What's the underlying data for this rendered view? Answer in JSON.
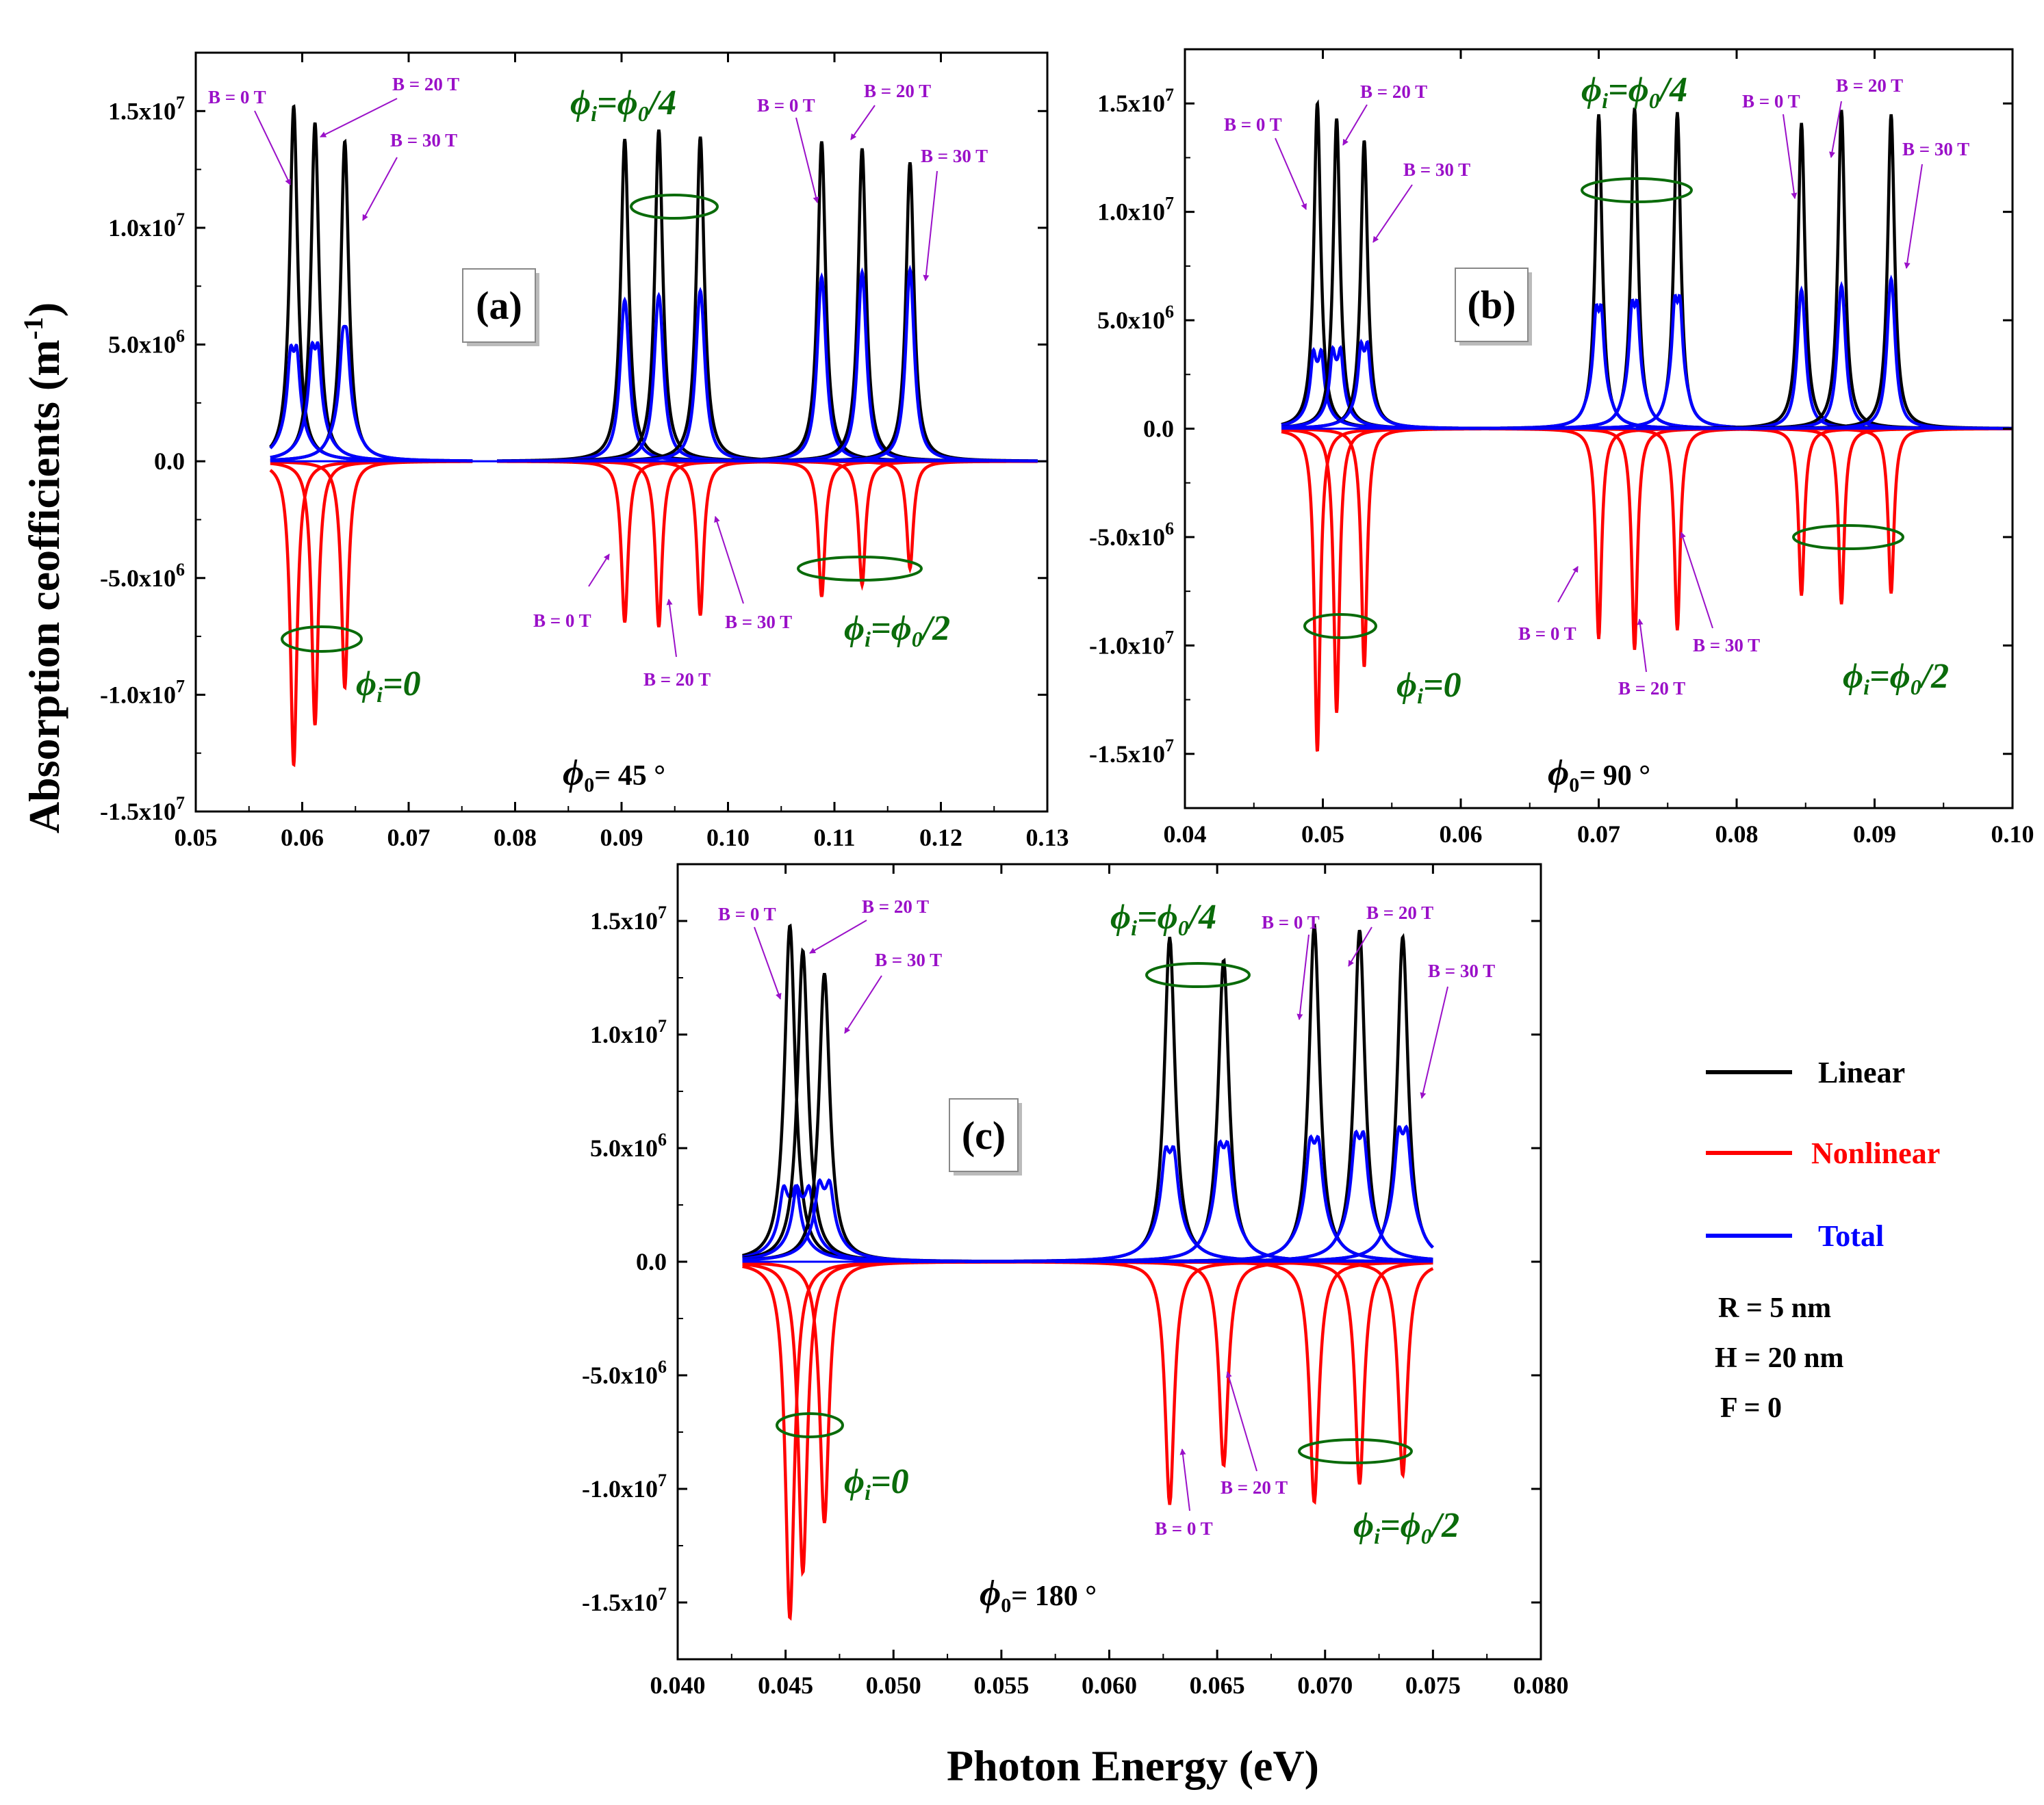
{
  "chart_data": [
    {
      "type": "line",
      "panel_label": "(a)",
      "phi0_label": "45 °",
      "xlim": [
        0.05,
        0.13
      ],
      "ylim": [
        -15000000,
        17500000
      ],
      "xticks": [
        "0.05",
        "0.06",
        "0.07",
        "0.08",
        "0.09",
        "0.10",
        "0.11",
        "0.12",
        "0.13"
      ],
      "ytick_values": [
        -15000000,
        -10000000,
        -5000000,
        0,
        5000000,
        10000000,
        15000000
      ],
      "ytick_labels": [
        {
          "mant": "-1.5x10",
          "exp": "7"
        },
        {
          "mant": "-1.0x10",
          "exp": "7"
        },
        {
          "mant": "-5.0x10",
          "exp": "6"
        },
        {
          "mant": "0.0",
          "exp": ""
        },
        {
          "mant": "5.0x10",
          "exp": "6"
        },
        {
          "mant": "1.0x10",
          "exp": "7"
        },
        {
          "mant": "1.5x10",
          "exp": "7"
        }
      ],
      "x_range": [
        0.057,
        0.13
      ],
      "groups": [
        {
          "name": "phi_i = 0",
          "peaks": [
            {
              "field": "B = 0 T",
              "energy": 0.0592,
              "linear": 15200000,
              "nonlinear": -13000000,
              "total": 4600000,
              "width": 0.00045,
              "split": 0.0006
            },
            {
              "field": "B = 20 T",
              "energy": 0.0612,
              "linear": 14500000,
              "nonlinear": -11300000,
              "total": 4700000,
              "width": 0.00045,
              "split": 0.0006
            },
            {
              "field": "B = 30 T",
              "energy": 0.064,
              "linear": 13700000,
              "nonlinear": -9700000,
              "total": 4800000,
              "width": 0.00045,
              "split": 0.0004
            }
          ]
        },
        {
          "name": "phi_i = phi_0/4",
          "peaks": [
            {
              "field": "B = 0 T",
              "energy": 0.0903,
              "linear": 13800000,
              "nonlinear": -6900000,
              "total": 6900000,
              "width": 0.00045,
              "split": 0
            },
            {
              "field": "B = 20 T",
              "energy": 0.0935,
              "linear": 14200000,
              "nonlinear": -7100000,
              "total": 7100000,
              "width": 0.00045,
              "split": 0
            },
            {
              "field": "B = 30 T",
              "energy": 0.0974,
              "linear": 13900000,
              "nonlinear": -6600000,
              "total": 7300000,
              "width": 0.00045,
              "split": 0
            }
          ]
        },
        {
          "name": "phi_i = phi_0/2",
          "peaks": [
            {
              "field": "B = 0 T",
              "energy": 0.1088,
              "linear": 13700000,
              "nonlinear": -5800000,
              "total": 7900000,
              "width": 0.00045,
              "split": 0
            },
            {
              "field": "B = 20 T",
              "energy": 0.1126,
              "linear": 13400000,
              "nonlinear": -5300000,
              "total": 8100000,
              "width": 0.00045,
              "split": 0
            },
            {
              "field": "B = 30 T",
              "energy": 0.1171,
              "linear": 12800000,
              "nonlinear": -4600000,
              "total": 8200000,
              "width": 0.00045,
              "split": 0
            }
          ]
        }
      ]
    },
    {
      "type": "line",
      "panel_label": "(b)",
      "phi0_label": "90 °",
      "xlim": [
        0.04,
        0.1
      ],
      "ylim": [
        -17500000,
        17500000
      ],
      "xticks": [
        "0.04",
        "0.05",
        "0.06",
        "0.07",
        "0.08",
        "0.09",
        "0.10"
      ],
      "ytick_values": [
        -15000000,
        -10000000,
        -5000000,
        0,
        5000000,
        10000000,
        15000000
      ],
      "ytick_labels": [
        {
          "mant": "-1.5x10",
          "exp": "7"
        },
        {
          "mant": "-1.0x10",
          "exp": "7"
        },
        {
          "mant": "-5.0x10",
          "exp": "6"
        },
        {
          "mant": "0.0",
          "exp": ""
        },
        {
          "mant": "5.0x10",
          "exp": "6"
        },
        {
          "mant": "1.0x10",
          "exp": "7"
        },
        {
          "mant": "1.5x10",
          "exp": "7"
        }
      ],
      "x_range": [
        0.047,
        0.1
      ],
      "groups": [
        {
          "name": "phi_i = 0",
          "peaks": [
            {
              "field": "B = 0 T",
              "energy": 0.0496,
              "linear": 15000000,
              "nonlinear": -14900000,
              "total": 3700000,
              "width": 0.0003,
              "split": 0.0006
            },
            {
              "field": "B = 20 T",
              "energy": 0.051,
              "linear": 14300000,
              "nonlinear": -13100000,
              "total": 3800000,
              "width": 0.0003,
              "split": 0.0006
            },
            {
              "field": "B = 30 T",
              "energy": 0.053,
              "linear": 13300000,
              "nonlinear": -11000000,
              "total": 3900000,
              "width": 0.0003,
              "split": 0.0005
            }
          ]
        },
        {
          "name": "phi_i = phi_0/4",
          "peaks": [
            {
              "field": "B = 0 T",
              "energy": 0.07,
              "linear": 14500000,
              "nonlinear": -9700000,
              "total": 5300000,
              "width": 0.0003,
              "split": 0.0004
            },
            {
              "field": "B = 20 T",
              "energy": 0.0726,
              "linear": 14800000,
              "nonlinear": -10200000,
              "total": 5500000,
              "width": 0.0003,
              "split": 0.0004
            },
            {
              "field": "B = 30 T",
              "energy": 0.0757,
              "linear": 14600000,
              "nonlinear": -9300000,
              "total": 5700000,
              "width": 0.0003,
              "split": 0.0004
            }
          ]
        },
        {
          "name": "phi_i = phi_0/2",
          "peaks": [
            {
              "field": "B = 0 T",
              "energy": 0.0847,
              "linear": 14100000,
              "nonlinear": -7700000,
              "total": 6400000,
              "width": 0.0003,
              "split": 0
            },
            {
              "field": "B = 20 T",
              "energy": 0.0876,
              "linear": 14700000,
              "nonlinear": -8100000,
              "total": 6600000,
              "width": 0.0003,
              "split": 0
            },
            {
              "field": "B = 30 T",
              "energy": 0.0912,
              "linear": 14500000,
              "nonlinear": -7600000,
              "total": 6900000,
              "width": 0.0003,
              "split": 0
            }
          ]
        }
      ]
    },
    {
      "type": "line",
      "panel_label": "(c)",
      "phi0_label": "180 °",
      "xlim": [
        0.04,
        0.08
      ],
      "ylim": [
        -17500000,
        17500000
      ],
      "xticks": [
        "0.040",
        "0.045",
        "0.050",
        "0.055",
        "0.060",
        "0.065",
        "0.070",
        "0.075",
        "0.080"
      ],
      "ytick_values": [
        -15000000,
        -10000000,
        -5000000,
        0,
        5000000,
        10000000,
        15000000
      ],
      "ytick_labels": [
        {
          "mant": "-1.5x10",
          "exp": "7"
        },
        {
          "mant": "-1.0x10",
          "exp": "7"
        },
        {
          "mant": "-5.0x10",
          "exp": "6"
        },
        {
          "mant": "0.0",
          "exp": ""
        },
        {
          "mant": "5.0x10",
          "exp": "6"
        },
        {
          "mant": "1.0x10",
          "exp": "7"
        },
        {
          "mant": "1.5x10",
          "exp": "7"
        }
      ],
      "x_range": [
        0.043,
        0.075
      ],
      "groups": [
        {
          "name": "phi_i = 0",
          "peaks": [
            {
              "field": "B = 0 T",
              "energy": 0.0452,
              "linear": 14800000,
              "nonlinear": -15700000,
              "total": 3400000,
              "width": 0.0003,
              "split": 0.0006
            },
            {
              "field": "B = 20 T",
              "energy": 0.0458,
              "linear": 13700000,
              "nonlinear": -13700000,
              "total": 3400000,
              "width": 0.0003,
              "split": 0.0006
            },
            {
              "field": "B = 30 T",
              "energy": 0.0468,
              "linear": 12700000,
              "nonlinear": -11500000,
              "total": 3500000,
              "width": 0.0003,
              "split": 0.0005
            }
          ]
        },
        {
          "name": "phi_i = phi_0/4",
          "peaks": [
            {
              "field": "B = 0 T",
              "energy": 0.0628,
              "linear": 14300000,
              "nonlinear": -10700000,
              "total": 4700000,
              "width": 0.0003,
              "split": 0.0004
            },
            {
              "field": "B = 20 T",
              "energy": 0.0653,
              "linear": 13300000,
              "nonlinear": -9000000,
              "total": 4900000,
              "width": 0.0003,
              "split": 0.0004
            }
          ]
        },
        {
          "name": "phi_i = phi_0/2",
          "peaks": [
            {
              "field": "B = 0 T",
              "energy": 0.0695,
              "linear": 14800000,
              "nonlinear": -10600000,
              "total": 5100000,
              "width": 0.0003,
              "split": 0.0004
            },
            {
              "field": "B = 20 T",
              "energy": 0.0716,
              "linear": 14600000,
              "nonlinear": -9800000,
              "total": 5300000,
              "width": 0.0003,
              "split": 0.0004
            },
            {
              "field": "B = 30 T",
              "energy": 0.0736,
              "linear": 14300000,
              "nonlinear": -9400000,
              "total": 5500000,
              "width": 0.0003,
              "split": 0.0004
            }
          ]
        }
      ]
    }
  ],
  "labels": {
    "ylabel_main": "Absorption ceofficients (m",
    "ylabel_exp": "-1",
    "ylabel_close": ")",
    "xlabel": "Photon Energy (eV)",
    "phi_symbol": "ϕ",
    "sub_i": "i",
    "sub_0": "0",
    "phi_eq0": "=0",
    "phi_eq_phi0": "=",
    "quarter": "/4",
    "half": "/2",
    "phi0_eq": "= ",
    "b0": "B = 0 T",
    "b0_c": "B = 0  T",
    "b20": "B = 20 T",
    "b30": "B = 30 T"
  },
  "legend": [
    {
      "label": "Linear",
      "color": "#000000"
    },
    {
      "label": "Nonlinear",
      "color": "#ff0000"
    },
    {
      "label": "Total",
      "color": "#0000ff"
    }
  ],
  "parameters": [
    "R = 5 nm",
    "H = 20 nm",
    "F = 0"
  ],
  "colors": {
    "linear": "#000000",
    "nonlinear": "#ff0000",
    "total": "#0000ff",
    "annotation": "#9a10c8",
    "group": "#0a6b0a"
  }
}
